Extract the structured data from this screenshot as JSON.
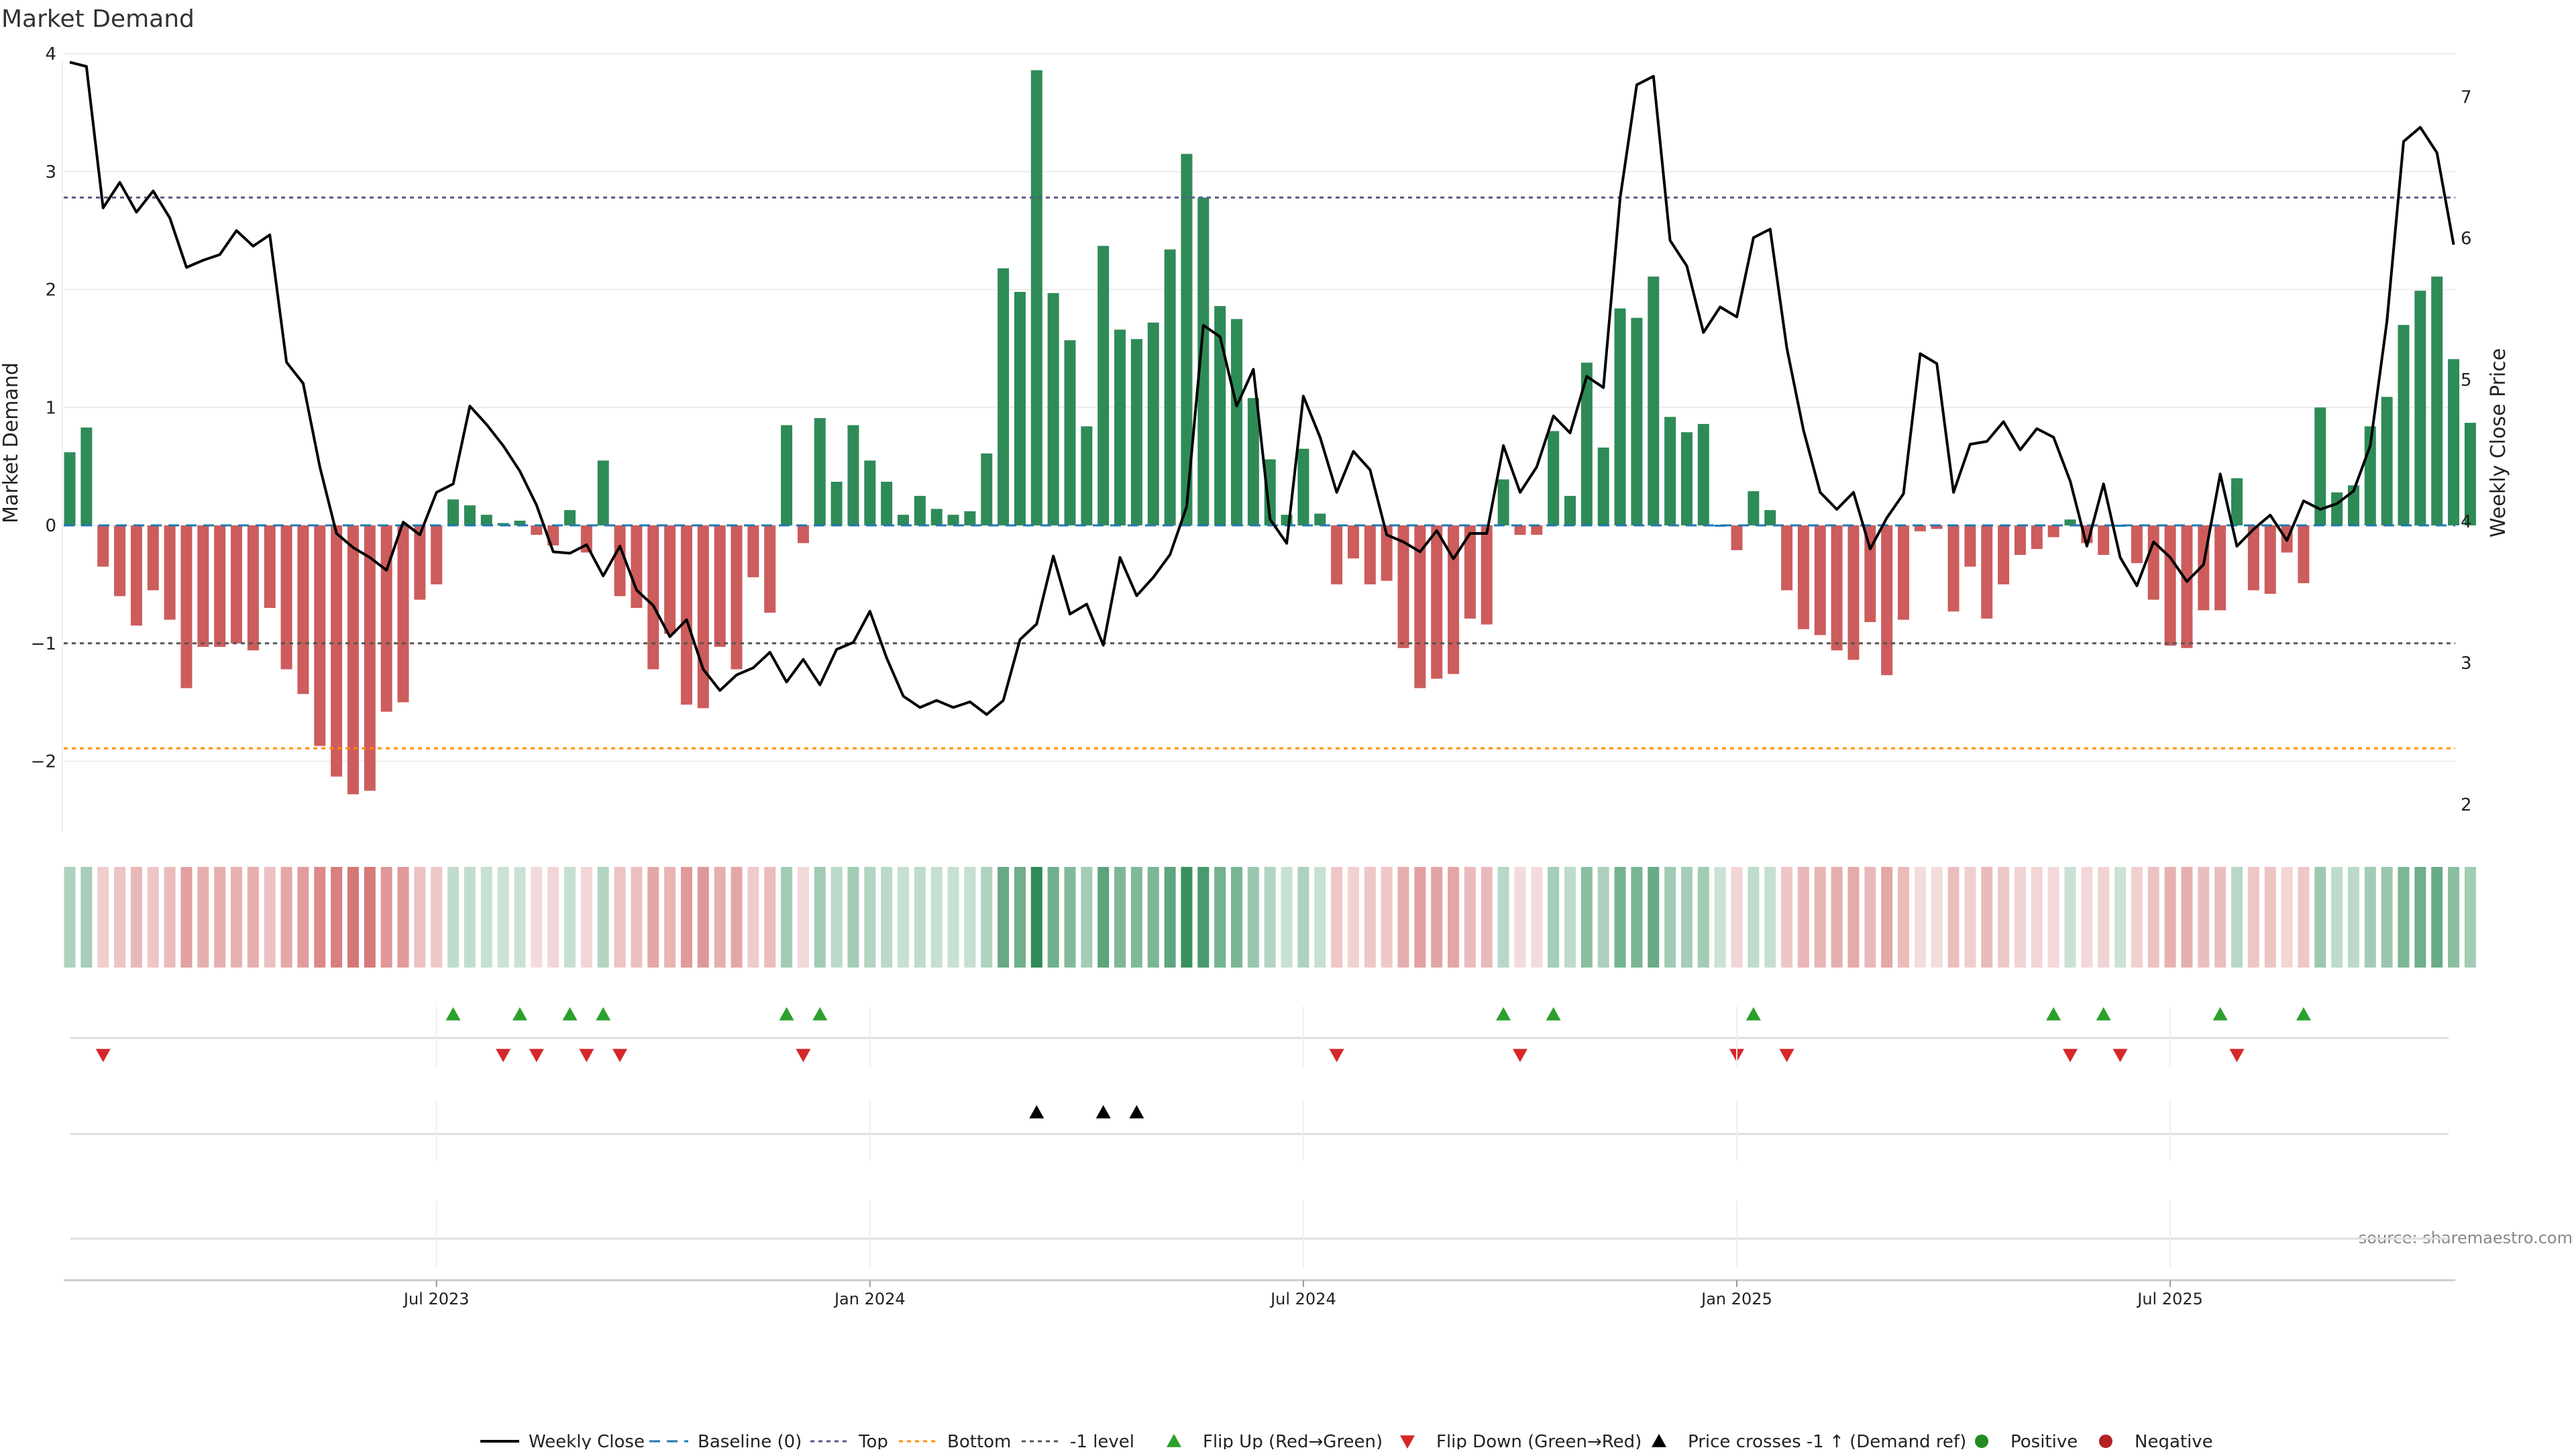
{
  "title": "Market Demand",
  "source": "source: sharemaestro.com",
  "colors": {
    "positive": "#2e8b57",
    "negative": "#cd5c5c",
    "price": "#000000",
    "top": "#5a5a8c",
    "bottom": "#ff8c00",
    "minus1": "#555555",
    "baseline": "#1f77b4",
    "flip_up": "#2ca02c",
    "flip_down": "#d62728",
    "cross": "#000000",
    "pos_dot": "#228b22",
    "neg_dot": "#b22222"
  },
  "chart_data": {
    "type": "bar",
    "title": "Market Demand",
    "xlabel": "",
    "ylabel": "Market Demand",
    "y2label": "Weekly Close Price",
    "ylim": [
      -2.6,
      4.0
    ],
    "y2lim": [
      1.8,
      7.3
    ],
    "yticks": [
      4,
      3,
      2,
      1,
      0,
      -1,
      -2
    ],
    "y2ticks": [
      7,
      6,
      5,
      4,
      3,
      2
    ],
    "ytick_labels": [
      "4",
      "3",
      "2",
      "1",
      "0",
      "−1",
      "−2"
    ],
    "y2tick_labels": [
      "7",
      "6",
      "5",
      "4",
      "3",
      "2"
    ],
    "top_level": 2.78,
    "bottom_level": -1.89,
    "minus1_level": -1.0,
    "xtick_labels": [
      "Jul 2023",
      "Jan 2024",
      "Jul 2024",
      "Jan 2025",
      "Jul 2025"
    ],
    "xtick_index": [
      22,
      48,
      74,
      100,
      126
    ],
    "demand": [
      0.62,
      0.83,
      -0.35,
      -0.6,
      -0.85,
      -0.55,
      -0.8,
      -1.38,
      -1.03,
      -1.03,
      -1.0,
      -1.06,
      -0.7,
      -1.22,
      -1.43,
      -1.87,
      -2.13,
      -2.28,
      -2.25,
      -1.58,
      -1.5,
      -0.63,
      -0.5,
      0.22,
      0.17,
      0.09,
      0.02,
      0.04,
      -0.08,
      -0.17,
      0.13,
      -0.23,
      0.55,
      -0.6,
      -0.7,
      -1.22,
      -0.92,
      -1.52,
      -1.55,
      -1.03,
      -1.22,
      -0.44,
      -0.74,
      0.85,
      -0.15,
      0.91,
      0.37,
      0.85,
      0.55,
      0.37,
      0.09,
      0.25,
      0.14,
      0.09,
      0.12,
      0.61,
      2.18,
      1.98,
      3.86,
      1.97,
      1.57,
      0.84,
      2.37,
      1.66,
      1.58,
      1.72,
      2.34,
      3.15,
      2.78,
      1.86,
      1.75,
      1.08,
      0.56,
      0.09,
      0.65,
      0.1,
      -0.5,
      -0.28,
      -0.5,
      -0.47,
      -1.04,
      -1.38,
      -1.3,
      -1.26,
      -0.79,
      -0.84,
      0.39,
      -0.08,
      -0.08,
      0.8,
      0.25,
      1.38,
      0.66,
      1.84,
      1.76,
      2.11,
      0.92,
      0.79,
      0.86,
      0.0,
      -0.21,
      0.29,
      0.13,
      -0.55,
      -0.88,
      -0.93,
      -1.06,
      -1.14,
      -0.82,
      -1.27,
      -0.8,
      -0.05,
      -0.03,
      -0.73,
      -0.35,
      -0.79,
      -0.5,
      -0.25,
      -0.2,
      -0.1,
      0.05,
      -0.15,
      -0.25,
      0.0,
      -0.32,
      -0.63,
      -1.02,
      -1.04,
      -0.72,
      -0.72,
      0.4,
      -0.55,
      -0.58,
      -0.23,
      -0.49,
      1.0,
      0.28,
      0.34,
      0.84,
      1.09,
      1.7,
      1.99,
      2.11,
      1.41,
      0.87
    ],
    "price": [
      7.24,
      7.21,
      6.21,
      6.39,
      6.18,
      6.33,
      6.14,
      5.79,
      5.84,
      5.88,
      6.05,
      5.94,
      6.02,
      5.12,
      4.97,
      4.38,
      3.91,
      3.81,
      3.74,
      3.65,
      3.99,
      3.9,
      4.2,
      4.26,
      4.81,
      4.68,
      4.53,
      4.35,
      4.11,
      3.78,
      3.77,
      3.83,
      3.61,
      3.82,
      3.51,
      3.4,
      3.18,
      3.3,
      2.95,
      2.8,
      2.91,
      2.96,
      3.07,
      2.86,
      3.02,
      2.84,
      3.09,
      3.14,
      3.36,
      3.03,
      2.76,
      2.68,
      2.73,
      2.68,
      2.72,
      2.63,
      2.73,
      3.16,
      3.27,
      3.75,
      3.34,
      3.41,
      3.12,
      3.74,
      3.47,
      3.6,
      3.76,
      4.1,
      5.38,
      5.3,
      4.81,
      5.07,
      4.01,
      3.84,
      4.88,
      4.59,
      4.2,
      4.49,
      4.36,
      3.9,
      3.85,
      3.78,
      3.93,
      3.73,
      3.91,
      3.91,
      4.53,
      4.2,
      4.38,
      4.74,
      4.62,
      5.02,
      4.94,
      6.28,
      7.08,
      7.14,
      5.98,
      5.8,
      5.33,
      5.51,
      5.44,
      6.0,
      6.06,
      5.22,
      4.64,
      4.2,
      4.08,
      4.2,
      3.8,
      4.02,
      4.19,
      5.18,
      5.11,
      4.2,
      4.54,
      4.56,
      4.7,
      4.5,
      4.65,
      4.59,
      4.28,
      3.82,
      4.26,
      3.74,
      3.54,
      3.85,
      3.74,
      3.57,
      3.69,
      4.33,
      3.82,
      3.94,
      4.04,
      3.86,
      4.14,
      4.08,
      4.12,
      4.21,
      4.53,
      5.41,
      6.68,
      6.78,
      6.6,
      5.95
    ],
    "flip_up_index": [
      23,
      27,
      30,
      32,
      43,
      45,
      86,
      89,
      101,
      119,
      122,
      129,
      134
    ],
    "flip_down_index": [
      2,
      26,
      28,
      31,
      33,
      44,
      76,
      87,
      100,
      103,
      120,
      123,
      130
    ],
    "price_cross_index": [
      58,
      62,
      64
    ]
  },
  "legend": [
    {
      "key": "weekly-close",
      "label": "Weekly Close"
    },
    {
      "key": "baseline",
      "label": "Baseline (0)"
    },
    {
      "key": "top",
      "label": "Top"
    },
    {
      "key": "bottom",
      "label": "Bottom"
    },
    {
      "key": "minus1",
      "label": "-1 level"
    },
    {
      "key": "flip-up",
      "label": "Flip Up (Red→Green)"
    },
    {
      "key": "flip-down",
      "label": "Flip Down (Green→Red)"
    },
    {
      "key": "price-cross",
      "label": "Price crosses -1 ↑ (Demand ref)"
    },
    {
      "key": "positive",
      "label": "Positive"
    },
    {
      "key": "negative",
      "label": "Negative"
    }
  ]
}
